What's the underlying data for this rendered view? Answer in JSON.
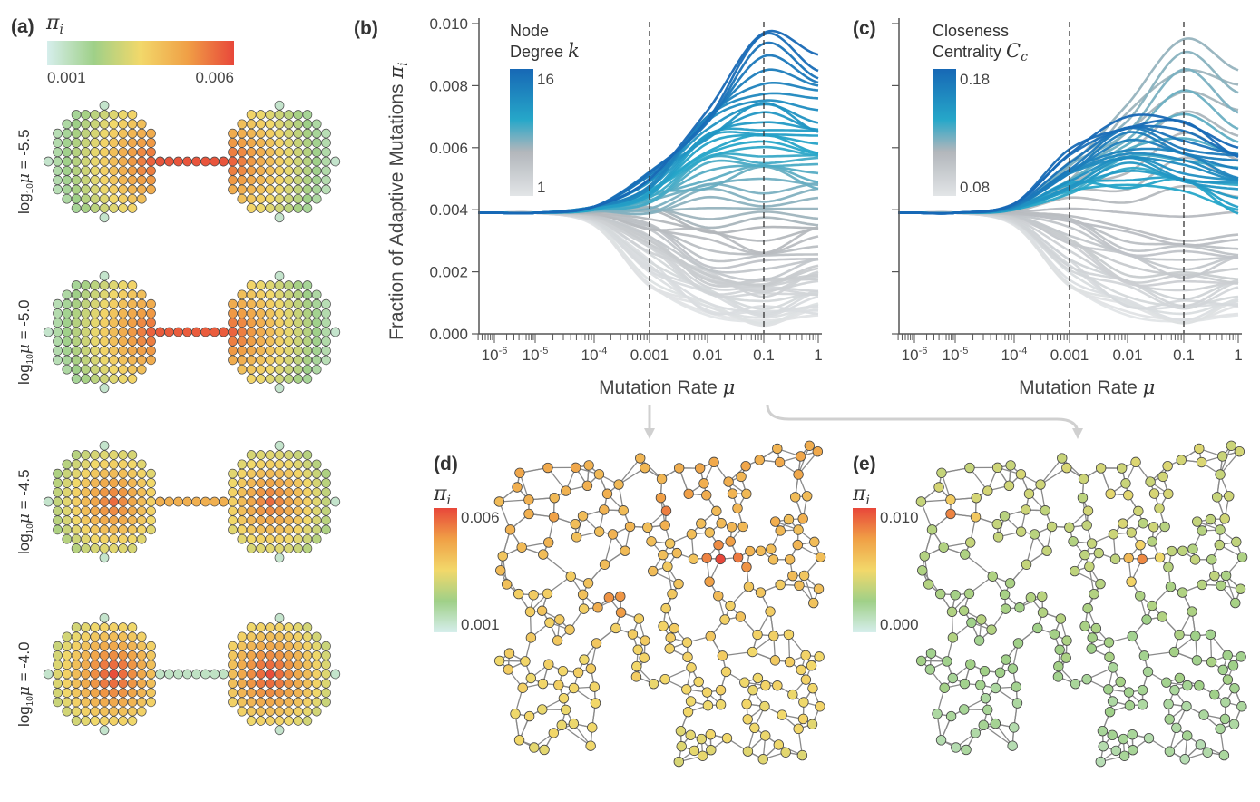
{
  "panel_a": {
    "label": "(a)",
    "colorbar": {
      "symbol": "π",
      "sub": "i",
      "min_label": "0.001",
      "max_label": "0.006",
      "colors": [
        "#d6eeec",
        "#9fd088",
        "#f2d86a",
        "#f0a046",
        "#e8473a"
      ]
    },
    "rows": [
      {
        "prefix": "log",
        "sub": "10",
        "mu": "μ",
        "value_text": " = -5.5",
        "hotspot": "bridge",
        "bridge_pi": 0.0058
      },
      {
        "prefix": "log",
        "sub": "10",
        "mu": "μ",
        "value_text": " = -5.0",
        "hotspot": "bridge",
        "bridge_pi": 0.0057
      },
      {
        "prefix": "log",
        "sub": "10",
        "mu": "μ",
        "value_text": " = -4.5",
        "hotspot": "clusters",
        "bridge_pi": 0.0044
      },
      {
        "prefix": "log",
        "sub": "10",
        "mu": "μ",
        "value_text": " = -4.0",
        "hotspot": "clusters",
        "bridge_pi": 0.0015
      }
    ]
  },
  "chart_data": [
    {
      "panel": "(b)",
      "type": "line",
      "xlabel": "Mutation Rate",
      "xlabel_symbol": "μ",
      "ylabel": "Fraction of Adaptive Mutations",
      "ylabel_symbol": "π",
      "ylabel_sub": "i",
      "xscale": "log",
      "x": [
        1e-06,
        1e-05,
        0.0001,
        0.001,
        0.01,
        0.1,
        1
      ],
      "xtick_labels": [
        {
          "base": "10",
          "exp": "-6"
        },
        {
          "base": "10",
          "exp": "-5"
        },
        {
          "base": "10",
          "exp": "-4"
        },
        {
          "text": "0.001"
        },
        {
          "text": "0.01"
        },
        {
          "text": "0.1"
        },
        {
          "text": "1"
        }
      ],
      "ylim": [
        0,
        0.01
      ],
      "yticks": [
        "0.000",
        "0.002",
        "0.004",
        "0.006",
        "0.008",
        "0.010"
      ],
      "show_ytick_labels": true,
      "vlines": [
        0.001,
        0.1
      ],
      "grid": false,
      "colorbar": {
        "title_line1": "Node",
        "title_line2": "Degree",
        "symbol": "k",
        "symbol_sub": "",
        "max_label": "16",
        "min_label": "1",
        "min": 1,
        "max": 16,
        "placement": "top-left"
      },
      "series": [
        {
          "color_value": 1,
          "values": [
            0.0039,
            0.0039,
            0.0035,
            0.0016,
            0.0006,
            0.0004,
            0.0006
          ]
        },
        {
          "color_value": 2,
          "values": [
            0.0039,
            0.0039,
            0.0036,
            0.0022,
            0.001,
            0.0007,
            0.0009
          ]
        },
        {
          "color_value": 3,
          "values": [
            0.0039,
            0.0039,
            0.0037,
            0.0028,
            0.0018,
            0.0014,
            0.0017
          ]
        },
        {
          "color_value": 4,
          "values": [
            0.0039,
            0.0039,
            0.0038,
            0.003,
            0.0019,
            0.0016,
            0.0022
          ]
        },
        {
          "color_value": 6,
          "values": [
            0.0039,
            0.0039,
            0.0039,
            0.0037,
            0.0033,
            0.003,
            0.0034
          ]
        },
        {
          "color_value": 8,
          "values": [
            0.0039,
            0.0039,
            0.004,
            0.0043,
            0.0048,
            0.005,
            0.0048
          ]
        },
        {
          "color_value": 10,
          "values": [
            0.0039,
            0.0039,
            0.004,
            0.0046,
            0.0058,
            0.0062,
            0.0058
          ]
        },
        {
          "color_value": 12,
          "values": [
            0.0039,
            0.0039,
            0.0041,
            0.0049,
            0.0066,
            0.0074,
            0.0068
          ]
        },
        {
          "color_value": 16,
          "values": [
            0.0039,
            0.0039,
            0.0041,
            0.005,
            0.0072,
            0.0097,
            0.009
          ]
        }
      ]
    },
    {
      "panel": "(c)",
      "type": "line",
      "xlabel": "Mutation Rate",
      "xlabel_symbol": "μ",
      "xscale": "log",
      "x": [
        1e-06,
        1e-05,
        0.0001,
        0.001,
        0.01,
        0.1,
        1
      ],
      "xtick_labels": [
        {
          "base": "10",
          "exp": "-6"
        },
        {
          "base": "10",
          "exp": "-5"
        },
        {
          "base": "10",
          "exp": "-4"
        },
        {
          "text": "0.001"
        },
        {
          "text": "0.01"
        },
        {
          "text": "0.1"
        },
        {
          "text": "1"
        }
      ],
      "ylim": [
        0,
        0.01
      ],
      "show_ytick_labels": false,
      "vlines": [
        0.001,
        0.1
      ],
      "grid": false,
      "colorbar": {
        "title_line1": "Closeness",
        "title_line2": "Centrality",
        "symbol": "C",
        "symbol_sub": "c",
        "max_label": "0.18",
        "min_label": "0.08",
        "min": 0.08,
        "max": 0.18,
        "placement": "top-left"
      },
      "series": [
        {
          "color_value": 0.08,
          "values": [
            0.0039,
            0.0039,
            0.0035,
            0.0016,
            0.0006,
            0.0004,
            0.0006
          ]
        },
        {
          "color_value": 0.09,
          "values": [
            0.0039,
            0.0039,
            0.0036,
            0.0022,
            0.0012,
            0.0009,
            0.0012
          ]
        },
        {
          "color_value": 0.1,
          "values": [
            0.0039,
            0.0039,
            0.0038,
            0.003,
            0.0022,
            0.0019,
            0.0021
          ]
        },
        {
          "color_value": 0.11,
          "values": [
            0.0039,
            0.0039,
            0.0039,
            0.0038,
            0.0034,
            0.003,
            0.0032
          ]
        },
        {
          "color_value": 0.12,
          "values": [
            0.0039,
            0.0039,
            0.0041,
            0.0054,
            0.0074,
            0.0095,
            0.0085
          ]
        },
        {
          "color_value": 0.14,
          "values": [
            0.0039,
            0.0039,
            0.004,
            0.0046,
            0.0048,
            0.0046,
            0.004
          ]
        },
        {
          "color_value": 0.16,
          "values": [
            0.0039,
            0.0039,
            0.0041,
            0.0052,
            0.0058,
            0.0056,
            0.005
          ]
        },
        {
          "color_value": 0.18,
          "values": [
            0.0039,
            0.0039,
            0.0042,
            0.0058,
            0.007,
            0.0068,
            0.006
          ]
        }
      ]
    }
  ],
  "panel_d": {
    "label": "(d)",
    "symbol": "π",
    "sub": "i",
    "max_label": "0.006",
    "min_label": "0.001",
    "source_mu": 0.001
  },
  "panel_e": {
    "label": "(e)",
    "symbol": "π",
    "sub": "i",
    "max_label": "0.010",
    "min_label": "0.000",
    "source_mu": 0.1
  },
  "colors": {
    "pi_scale": [
      "#d6eeec",
      "#9fd088",
      "#f2d86a",
      "#f0a046",
      "#e8473a"
    ],
    "line_scale": [
      "#e2e5e7",
      "#b2b6bb",
      "#26a7c9",
      "#1768b5"
    ],
    "axis": "#555555",
    "arrow": "#d0d0d0"
  }
}
